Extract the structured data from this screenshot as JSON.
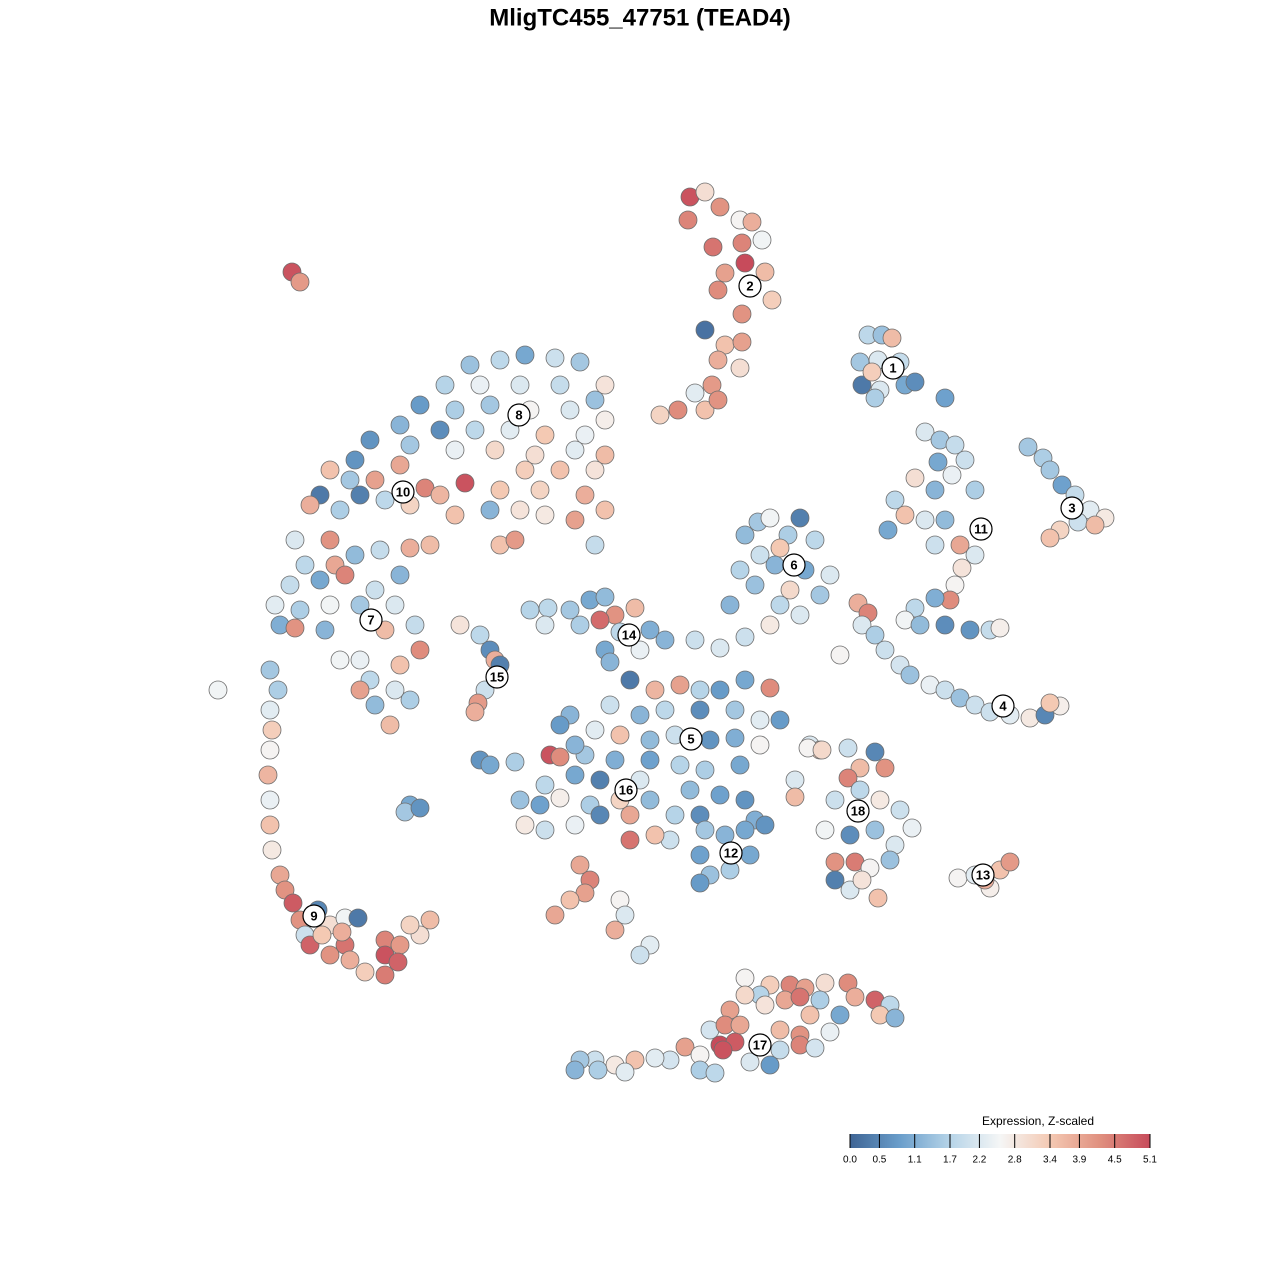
{
  "chart_data": {
    "type": "scatter",
    "title": "MligTC455_47751 (TEAD4)",
    "colorbar": {
      "title": "Expression, Z-scaled",
      "lim": [
        0,
        5.1
      ],
      "ticks": [
        {
          "value": 0,
          "label": "0.0"
        },
        0.5,
        1.1,
        1.7,
        2.2,
        2.8,
        3.4,
        3.9,
        4.5,
        5.1
      ],
      "colors": [
        "#3f6595",
        "#6a9ecb",
        "#b6d4e8",
        "#f5f6f6",
        "#f4c9b3",
        "#e0907f",
        "#c74b5b"
      ]
    },
    "x": [
      69,
      70.5,
      72,
      68.8,
      74,
      75.2,
      71.3,
      74.2,
      76.2,
      74.5,
      72.5,
      76.5,
      71.8,
      77.2,
      74.2,
      70.5,
      72.5,
      74.2,
      71.8,
      74,
      71.2,
      69.5,
      70.5,
      67.8,
      66,
      71.8,
      86.8,
      88.2,
      89.2,
      86,
      87.8,
      90,
      86.2,
      88,
      90.5,
      91.5,
      87.5,
      94.5,
      87.2,
      92.5,
      94,
      95.5,
      96.5,
      93.8,
      95.2,
      91.5,
      93.5,
      97.5,
      89.5,
      90.5,
      92.5,
      94.5,
      88.8,
      96,
      97.5,
      96.2,
      95.5,
      95,
      93.5,
      91.5,
      90.5,
      92,
      94.5,
      97,
      99,
      100,
      93.5,
      102.8,
      104.3,
      105,
      106.2,
      107.5,
      109,
      110.5,
      106,
      105,
      107.8,
      109.5,
      85.8,
      86.8,
      86.2,
      87.5,
      88.5,
      84,
      90,
      91,
      93,
      94.5,
      96,
      97.5,
      99,
      101,
      103,
      104.5,
      106,
      105,
      75.8,
      77,
      80,
      74.5,
      78.8,
      81.5,
      76,
      78,
      74,
      77.5,
      80.5,
      83,
      75.5,
      79,
      82,
      73,
      78,
      80,
      77,
      74.5,
      47,
      50,
      52.5,
      55.5,
      58,
      60.5,
      44.5,
      48,
      52,
      56,
      59.5,
      42,
      45.5,
      49,
      53,
      57,
      60.5,
      40,
      44,
      47.5,
      51,
      54.5,
      58.5,
      37,
      41,
      45.5,
      49.5,
      53.5,
      57.5,
      60.5,
      35.5,
      52.5,
      56,
      59.5,
      50,
      54,
      58.5,
      60.5,
      57.5,
      54.5,
      52,
      49,
      59.5,
      50,
      51.5,
      33,
      35,
      37.5,
      40,
      42.5,
      44,
      46.5,
      41,
      38.5,
      36,
      32,
      31,
      34,
      45.5,
      43,
      29.5,
      33,
      30.5,
      33.5,
      35.5,
      38,
      41,
      29,
      32,
      34.5,
      37.5,
      40,
      27.5,
      30,
      33,
      36,
      39.5,
      28,
      29.5,
      32.5,
      38.5,
      41.5,
      42,
      40,
      36,
      34,
      37,
      39.5,
      41,
      37.5,
      39,
      36,
      21.8,
      27,
      27.8,
      27,
      27.2,
      27,
      26.8,
      27,
      27,
      27.2,
      28,
      28.5,
      29.3,
      30,
      31.8,
      33,
      34.5,
      35.8,
      30.5,
      31,
      33,
      34.5,
      35,
      38.5,
      40,
      42,
      43,
      41,
      38.5,
      39.8,
      38.5,
      36.5,
      32.2,
      34.2,
      29.2,
      30,
      46,
      48,
      49,
      49.5,
      50,
      48.5,
      47.8,
      47.5,
      53,
      54.8,
      57,
      59,
      60.5,
      61.5,
      63.5,
      54.5,
      58,
      60,
      62,
      65,
      60.5,
      64,
      61,
      66.5,
      69.5,
      72,
      63,
      65.5,
      68,
      70,
      72,
      74.5,
      77,
      61,
      64,
      66.5,
      70,
      73.5,
      76,
      78,
      59.5,
      62,
      65,
      67.5,
      71,
      73.5,
      76,
      58.5,
      61.5,
      65,
      68,
      70.5,
      74,
      69,
      72,
      74.5,
      67.5,
      70,
      75.5,
      67,
      79.5,
      79.5,
      81,
      82,
      57,
      56,
      48,
      49,
      51.5,
      55,
      56,
      57.5,
      54.5,
      57.5,
      60,
      64,
      52,
      54,
      56,
      59,
      62,
      65,
      52.5,
      54.5,
      57.5,
      60,
      63,
      65.5,
      63,
      41,
      40.5,
      42,
      70.5,
      72.5,
      74.5,
      76.5,
      70,
      75,
      71,
      73,
      70,
      58,
      59,
      58.5,
      57,
      55.5,
      62,
      62.5,
      61.5,
      65,
      64,
      80.8,
      82.2,
      84.8,
      87.5,
      88.5,
      86,
      84.8,
      83.5,
      86,
      88,
      90,
      91.2,
      82.5,
      85,
      87.5,
      89.5,
      83.5,
      85.5,
      87,
      89,
      83.5,
      85,
      87.8,
      86.2,
      95.8,
      97.5,
      99,
      100,
      101,
      98.5,
      74.5,
      77,
      79,
      80.5,
      82.5,
      84.8,
      76,
      74.5,
      78.5,
      80,
      82,
      85.5,
      87.5,
      89,
      73,
      76.5,
      81,
      84,
      88,
      89.5,
      71,
      72.5,
      74,
      78,
      80,
      83,
      72,
      73.5,
      78,
      80,
      81.5,
      72.3,
      68.5,
      70,
      67,
      65.5,
      63.5,
      61.5,
      59.5,
      58,
      57.5,
      59.8,
      62.5,
      70,
      71.5,
      75,
      77
    ],
    "y": [
      -19.7,
      -19.2,
      -20.7,
      -22,
      -22,
      -22.2,
      -24.7,
      -24.3,
      -24,
      -26.3,
      -27.3,
      -27.2,
      -29,
      -30,
      -31.4,
      -33,
      -34.5,
      -34.2,
      -36,
      -36.8,
      -38.5,
      -39.3,
      -41,
      -41,
      -41.5,
      -40,
      -33.5,
      -33.5,
      -33.8,
      -36.2,
      -36,
      -36.2,
      -38.5,
      -39,
      -38.5,
      -38.2,
      -39.8,
      -39.8,
      -37.2,
      -43.2,
      -44,
      -44.5,
      -46,
      -46.2,
      -47.5,
      -47.8,
      -49,
      -49,
      -50,
      -51.5,
      -52,
      -52,
      -53,
      -54.5,
      -55.5,
      -56.8,
      -58.5,
      -60,
      -59.8,
      -60.8,
      -62,
      -62.5,
      -62.5,
      -63,
      -63,
      -62.8,
      -54.5,
      -44.7,
      -45.8,
      -47,
      -48.5,
      -49.5,
      -51,
      -51.8,
      -53,
      -53.8,
      -52.2,
      -52.5,
      -60.3,
      -61.3,
      -62.5,
      -63.5,
      -65,
      -65.5,
      -66.5,
      -67.5,
      -68.5,
      -69,
      -69.8,
      -70.5,
      -71.2,
      -71.5,
      -71.8,
      -71.5,
      -70.6,
      -70.3,
      -52.2,
      -51.8,
      -51.8,
      -53.5,
      -53.5,
      -54,
      -55.5,
      -54.8,
      -57,
      -56.5,
      -57,
      -57.5,
      -58.5,
      -59,
      -59.5,
      -60.5,
      -60.5,
      -61.5,
      -62.5,
      -63.7,
      -36.5,
      -36,
      -35.5,
      -35.8,
      -36.2,
      -38.5,
      -38.5,
      -38.5,
      -38.5,
      -38.5,
      -40,
      -40.5,
      -41,
      -40.5,
      -41,
      -41,
      -42,
      -42.5,
      -43,
      -43,
      -43,
      -43.5,
      -43.5,
      -44,
      -44.5,
      -45,
      -45,
      -45.5,
      -45,
      -45.5,
      -46,
      -47,
      -47,
      -47,
      -49,
      -49,
      -49.5,
      -51,
      -52,
      -51.5,
      -51,
      -51,
      -54.5,
      -54.5,
      -54,
      -47,
      -48,
      -48,
      -46.5,
      -48.8,
      -49.5,
      -48.3,
      -50.5,
      -50,
      -49.5,
      -49.5,
      -50.5,
      -51,
      -51.5,
      -54.5,
      -54,
      -54,
      -56.5,
      -56.5,
      -55.5,
      -55,
      -54.8,
      -58.5,
      -58,
      -57.5,
      -59,
      -57.5,
      -60.5,
      -61,
      -60.5,
      -60.5,
      -60.5,
      -62.5,
      -62.8,
      -63,
      -63,
      -62.5,
      -65,
      -66.5,
      -66,
      -66,
      -68,
      -69,
      -70,
      -70.5,
      -72.5,
      -69,
      -69,
      -67,
      -69,
      -71,
      -73,
      -75,
      -77.5,
      -80,
      -82.5,
      -85,
      -87.5,
      -89,
      -90.3,
      -92,
      -91,
      -92.5,
      -91.8,
      -91.8,
      -93.5,
      -94.5,
      -95.5,
      -94.5,
      -96,
      -94,
      -94.5,
      -93.5,
      -92,
      -92.5,
      -95.5,
      -96.2,
      -97.5,
      -97.2,
      -93.5,
      -93.2,
      -27.2,
      -28.2,
      -62.5,
      -63.5,
      -65,
      -66,
      -66.5,
      -69,
      -70.3,
      -71.2,
      -61,
      -60.8,
      -61,
      -60,
      -59.7,
      -61.5,
      -60.8,
      -62.5,
      -62.5,
      -62,
      -63.2,
      -63,
      -65,
      -65,
      -66.2,
      -64,
      -64,
      -64.8,
      -68,
      -69,
      -68.5,
      -69,
      -69,
      -68,
      -68.8,
      -70.5,
      -71.5,
      -71,
      -71,
      -71,
      -72,
      -72,
      -73,
      -73.5,
      -74,
      -73.5,
      -74,
      -73.8,
      -74.5,
      -75.5,
      -76,
      -76,
      -76.5,
      -77,
      -76.5,
      -79,
      -79.5,
      -80,
      -81.5,
      -81.5,
      -82,
      -84,
      -78,
      -79.7,
      -74.5,
      -75,
      -71.5,
      -72.5,
      -76,
      -76.5,
      -76.2,
      -75.5,
      -75.7,
      -74.5,
      -78.5,
      -77.5,
      -78,
      -78,
      -80,
      -80.5,
      -79.8,
      -80.5,
      -80,
      -80,
      -82.5,
      -83,
      -82.5,
      -81.5,
      -81.5,
      -83.5,
      -84,
      -80.5,
      -81.2,
      -80.8,
      -83,
      -83.5,
      -83,
      -82.5,
      -85.5,
      -85.5,
      -87.5,
      -87,
      -88.3,
      -86.5,
      -88,
      -89.3,
      -90,
      -91.5,
      -90,
      -91.5,
      -93,
      -94.5,
      -95.5,
      -74.8,
      -75,
      -74.8,
      -75.2,
      -76.8,
      -76.8,
      -77.8,
      -80,
      -79,
      -80,
      -81,
      -82.8,
      -83,
      -83.5,
      -83,
      -84.5,
      -86.2,
      -86.2,
      -86.8,
      -86,
      -88,
      -89,
      -89.8,
      -88,
      -87.8,
      -87.5,
      -88.8,
      -87,
      -86.2,
      -88,
      -97.8,
      -98.5,
      -98.5,
      -98.8,
      -98.3,
      -98.3,
      -99.5,
      -99.5,
      -100,
      -99.7,
      -100,
      -99.7,
      -100,
      -100.5,
      -101,
      -100.5,
      -101.5,
      -101.5,
      -101.5,
      -101.8,
      -103,
      -102.5,
      -102.5,
      -103,
      -103.5,
      -103.2,
      -104.5,
      -104.2,
      -105,
      -104.5,
      -104.8,
      -105,
      -104.7,
      -105.5,
      -106,
      -105.8,
      -106,
      -106.5,
      -106,
      -106,
      -107,
      -107,
      -107.2,
      -107,
      -107.3,
      -106.2,
      -106.5
    ],
    "values": [
      5.0,
      3.0,
      4.2,
      4.4,
      2.6,
      3.8,
      4.6,
      4.4,
      2.5,
      5.1,
      4.0,
      3.6,
      4.3,
      3.3,
      4.2,
      0.2,
      3.5,
      4.0,
      3.8,
      3.0,
      4.1,
      2.3,
      3.5,
      4.3,
      3.2,
      4.2,
      1.8,
      1.4,
      3.6,
      1.5,
      2.2,
      1.9,
      0.3,
      2.2,
      1.0,
      0.6,
      1.6,
      0.9,
      3.3,
      2.2,
      1.5,
      1.9,
      2.0,
      1.0,
      2.4,
      3.0,
      1.2,
      1.6,
      1.8,
      3.5,
      2.2,
      1.3,
      1.0,
      3.9,
      2.2,
      2.9,
      2.6,
      4.3,
      1.1,
      1.8,
      2.5,
      1.3,
      0.6,
      0.7,
      1.9,
      2.7,
      2.0,
      1.5,
      1.6,
      1.5,
      0.9,
      1.9,
      2.3,
      2.8,
      3.2,
      3.5,
      2.0,
      3.6,
      3.8,
      4.4,
      2.2,
      1.6,
      2.0,
      2.6,
      2.1,
      1.4,
      2.4,
      2.0,
      1.4,
      2.0,
      2.0,
      2.3,
      2.8,
      0.5,
      2.7,
      3.4,
      1.5,
      2.5,
      0.4,
      1.3,
      1.6,
      1.8,
      2.0,
      3.4,
      1.7,
      1.2,
      1.0,
      2.2,
      1.4,
      3.1,
      1.5,
      1.2,
      1.8,
      2.2,
      2.8,
      2.0,
      1.4,
      1.8,
      1.0,
      2.0,
      1.5,
      2.9,
      1.7,
      2.4,
      2.2,
      1.9,
      1.4,
      0.8,
      1.6,
      1.5,
      2.6,
      2.2,
      2.7,
      1.2,
      0.6,
      1.8,
      2.3,
      3.4,
      2.4,
      0.7,
      1.5,
      2.4,
      3.1,
      3.0,
      2.3,
      3.6,
      0.7,
      3.3,
      3.5,
      2.9,
      3.4,
      3.2,
      3.8,
      3.5,
      4.0,
      2.8,
      2.9,
      1.2,
      1.9,
      3.5,
      4.1,
      3.5,
      1.5,
      4.0,
      3.9,
      4.4,
      3.7,
      5.0,
      3.2,
      1.8,
      0.4,
      0.3,
      3.8,
      1.6,
      3.5,
      3.6,
      2.2,
      4.2,
      1.8,
      3.9,
      1.3,
      1.9,
      3.8,
      1.9,
      1.0,
      4.4,
      2.0,
      1.2,
      2.3,
      1.6,
      2.5,
      1.5,
      2.2,
      1.1,
      4.2,
      1.2,
      3.6,
      1.9,
      4.3,
      3.5,
      2.4,
      2.5,
      1.8,
      2.2,
      1.6,
      1.3,
      3.6,
      4.0,
      2.5,
      1.5,
      1.6,
      2.3,
      3.3,
      2.6,
      3.7,
      2.4,
      3.5,
      2.8,
      3.9,
      4.2,
      4.9,
      4.2,
      0.5,
      3.0,
      2.5,
      0.3,
      2.0,
      4.8,
      4.2,
      4.6,
      3.8,
      4.4,
      4.1,
      3.0,
      3.6,
      3.2,
      5.0,
      4.8,
      4.5,
      3.3,
      3.4,
      3.8,
      5.0,
      4.1,
      2.9,
      1.8,
      0.6,
      3.8,
      0.4,
      2.0,
      4.1,
      3.8,
      1.7,
      1.8,
      1.5,
      1.0,
      1.3,
      4.2,
      3.6,
      2.2,
      1.6,
      4.7,
      1.8,
      1.1,
      1.0,
      2.4,
      1.2,
      1.2,
      2.0,
      2.2,
      0.3,
      3.7,
      4.0,
      1.7,
      0.8,
      1.0,
      4.3,
      2.0,
      1.2,
      1.8,
      0.6,
      1.5,
      2.3,
      0.8,
      2.3,
      3.5,
      1.3,
      2.0,
      0.7,
      1.1,
      2.6,
      1.5,
      1.1,
      0.9,
      1.7,
      1.6,
      1.0,
      1.3,
      0.9,
      0.7,
      1.7,
      0.6,
      1.1,
      2.0,
      2.2,
      3.6,
      2.2,
      3.4,
      1.2,
      0.8,
      0.7,
      1.0,
      1.6,
      5.0,
      4.3,
      1.2,
      1.8,
      1.0,
      0.4,
      2.2,
      1.4,
      0.9,
      2.7,
      1.6,
      3.2,
      1.3,
      2.8,
      2.0,
      2.4,
      0.5,
      3.9,
      3.5,
      4.6,
      1.0,
      1.5,
      0.7,
      1.5,
      1.2,
      1.0,
      0.7,
      0.9,
      1.0,
      1.4,
      1.6,
      0.8,
      3.9,
      4.4,
      4.0,
      3.5,
      3.9,
      2.6,
      2.2,
      3.8,
      2.3,
      2.0,
      2.6,
      3.1,
      2.0,
      0.5,
      4.2,
      3.6,
      4.4,
      2.0,
      1.8,
      2.8,
      2.0,
      2.4,
      2.5,
      0.6,
      1.4,
      2.2,
      4.2,
      4.5,
      2.6,
      1.4,
      0.4,
      2.2,
      3.5,
      2.9,
      2.6,
      2.3,
      2.7,
      3.5,
      4.1,
      3.8,
      2.6,
      3.3,
      4.4,
      4.0,
      3.0,
      4.3,
      1.7,
      3.1,
      3.9,
      4.6,
      1.6,
      3.8,
      4.8,
      1.8,
      4.0,
      2.9,
      3.5,
      1.0,
      3.4,
      1.2,
      2.1,
      4.3,
      3.9,
      3.6,
      4.2,
      2.4,
      5.1,
      4.9,
      1.9,
      4.4,
      2.1,
      5.0,
      4.0,
      2.6,
      2.1,
      2.3,
      3.5,
      2.8,
      2.0,
      1.5,
      1.2,
      1.6,
      2.3,
      1.6,
      1.8,
      2.2,
      0.8
    ],
    "clusters": [
      {
        "label": "1",
        "x": 89.3,
        "y": -36.8
      },
      {
        "label": "2",
        "x": 75,
        "y": -28.6
      },
      {
        "label": "3",
        "x": 107.2,
        "y": -50.8
      },
      {
        "label": "4",
        "x": 100.3,
        "y": -70.6
      },
      {
        "label": "5",
        "x": 69.1,
        "y": -73.9
      },
      {
        "label": "6",
        "x": 79.4,
        "y": -56.5
      },
      {
        "label": "7",
        "x": 37.1,
        "y": -62
      },
      {
        "label": "8",
        "x": 51.9,
        "y": -41.5
      },
      {
        "label": "9",
        "x": 31.4,
        "y": -91.6
      },
      {
        "label": "10",
        "x": 40.3,
        "y": -49.2
      },
      {
        "label": "11",
        "x": 98.1,
        "y": -52.9
      },
      {
        "label": "12",
        "x": 73.1,
        "y": -85.3
      },
      {
        "label": "13",
        "x": 98.3,
        "y": -87.5
      },
      {
        "label": "14",
        "x": 62.9,
        "y": -63.5
      },
      {
        "label": "15",
        "x": 49.7,
        "y": -67.7
      },
      {
        "label": "16",
        "x": 62.6,
        "y": -79
      },
      {
        "label": "17",
        "x": 76,
        "y": -104.5
      },
      {
        "label": "18",
        "x": 85.8,
        "y": -81.1
      }
    ]
  }
}
